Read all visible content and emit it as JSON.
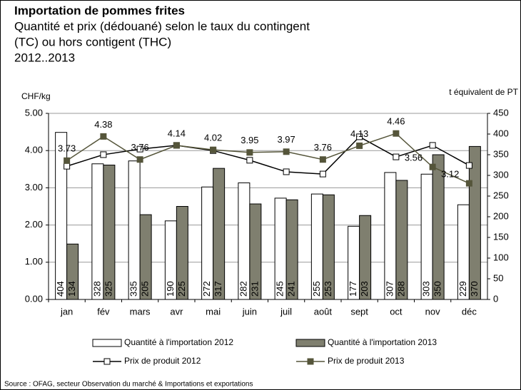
{
  "chart_data": {
    "type": "bar",
    "title": "Importation de pommes frites",
    "subtitle": [
      "Quantité et prix (dédouané) selon le taux du contingent",
      "(TC) ou hors contigent (THC)",
      "2012..2013"
    ],
    "y_label": "CHF/kg",
    "y2_label": "t équivalent de PT",
    "source": "Source : OFAG, secteur Observation du marché & Importations et exportations",
    "categories": [
      "jan",
      "fév",
      "mars",
      "avr",
      "mai",
      "juin",
      "juil",
      "août",
      "sept",
      "oct",
      "nov",
      "déc"
    ],
    "series": [
      {
        "name": "Quantité à l'importation 2012",
        "type": "bar",
        "axis": "y2",
        "color": "#ffffff",
        "values": [
          404,
          328,
          335,
          190,
          272,
          282,
          245,
          255,
          177,
          307,
          303,
          229
        ]
      },
      {
        "name": "Quantité à l'importation 2013",
        "type": "bar",
        "axis": "y2",
        "color": "#7f7f6f",
        "values": [
          134,
          325,
          205,
          225,
          317,
          231,
          241,
          253,
          203,
          288,
          350,
          370
        ]
      },
      {
        "name": "Prix de produit 2012",
        "type": "line",
        "color": "#000000",
        "marker_color": "#ffffff",
        "values": [
          3.58,
          3.89,
          4.04,
          4.14,
          4.0,
          3.74,
          3.43,
          3.37,
          4.37,
          3.83,
          4.14,
          3.6
        ]
      },
      {
        "name": "Prix de produit 2013",
        "type": "line",
        "color": "#55553a",
        "marker_color": "#55553a",
        "values": [
          3.73,
          4.38,
          3.76,
          4.14,
          4.02,
          3.95,
          3.97,
          3.76,
          4.13,
          4.46,
          3.56,
          3.12
        ]
      }
    ],
    "ylim": [
      0,
      5
    ],
    "yticks": [
      {
        "value": 0,
        "label": "0.00"
      },
      {
        "value": 1,
        "label": "1.00"
      },
      {
        "value": 2,
        "label": "2.00"
      },
      {
        "value": 3,
        "label": "3.00"
      },
      {
        "value": 4,
        "label": "4.00"
      },
      {
        "value": 5,
        "label": "5.00"
      }
    ],
    "y2lim": [
      0,
      450
    ],
    "y2ticks": [
      0,
      50,
      100,
      150,
      200,
      250,
      300,
      350,
      400,
      450
    ],
    "grid": true
  }
}
